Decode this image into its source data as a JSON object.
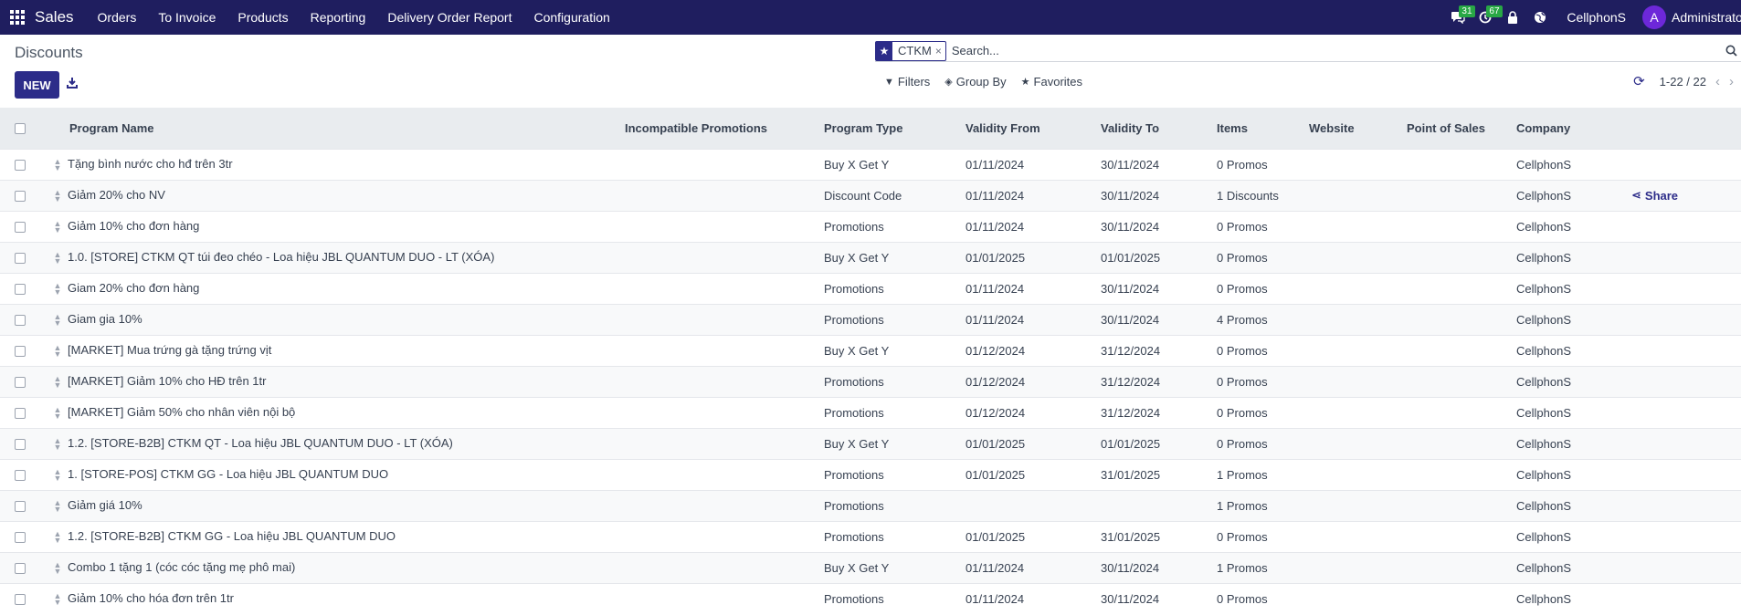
{
  "navbar": {
    "brand": "Sales",
    "menu": [
      "Orders",
      "To Invoice",
      "Products",
      "Reporting",
      "Delivery Order Report",
      "Configuration"
    ],
    "messages_badge": "31",
    "activities_badge": "67",
    "company": "CellphonS",
    "user_initial": "A",
    "user_name": "Administrator"
  },
  "control_panel": {
    "title": "Discounts",
    "new_label": "NEW",
    "search": {
      "facet_label": "CTKM",
      "facet_remove": "×",
      "placeholder": "Search..."
    },
    "filters_label": "Filters",
    "group_by_label": "Group By",
    "favorites_label": "Favorites",
    "pager_value": "1-22 / 22"
  },
  "table": {
    "columns": [
      "Program Name",
      "Incompatible Promotions",
      "Program Type",
      "Validity From",
      "Validity To",
      "Items",
      "Website",
      "Point of Sales",
      "Company"
    ],
    "share_label": "Share",
    "rows": [
      {
        "name": "Tặng bình nước cho hđ trên 3tr",
        "incompatible": "",
        "type": "Buy X Get Y",
        "from": "01/11/2024",
        "to": "30/11/2024",
        "items": "0 Promos",
        "website": "",
        "pos": "",
        "company": "CellphonS",
        "share": false
      },
      {
        "name": "Giảm 20% cho NV",
        "incompatible": "",
        "type": "Discount Code",
        "from": "01/11/2024",
        "to": "30/11/2024",
        "items": "1 Discounts",
        "website": "",
        "pos": "",
        "company": "CellphonS",
        "share": true
      },
      {
        "name": "Giảm 10% cho đơn hàng",
        "incompatible": "",
        "type": "Promotions",
        "from": "01/11/2024",
        "to": "30/11/2024",
        "items": "0 Promos",
        "website": "",
        "pos": "",
        "company": "CellphonS",
        "share": false
      },
      {
        "name": "1.0. [STORE] CTKM QT túi đeo chéo - Loa hiệu JBL QUANTUM DUO - LT (XÓA)",
        "incompatible": "",
        "type": "Buy X Get Y",
        "from": "01/01/2025",
        "to": "01/01/2025",
        "items": "0 Promos",
        "website": "",
        "pos": "",
        "company": "CellphonS",
        "share": false
      },
      {
        "name": "Giam 20% cho đơn hàng",
        "incompatible": "",
        "type": "Promotions",
        "from": "01/11/2024",
        "to": "30/11/2024",
        "items": "0 Promos",
        "website": "",
        "pos": "",
        "company": "CellphonS",
        "share": false
      },
      {
        "name": "Giam gia 10%",
        "incompatible": "",
        "type": "Promotions",
        "from": "01/11/2024",
        "to": "30/11/2024",
        "items": "4 Promos",
        "website": "",
        "pos": "",
        "company": "CellphonS",
        "share": false
      },
      {
        "name": "[MARKET] Mua trứng gà tặng trứng vịt",
        "incompatible": "",
        "type": "Buy X Get Y",
        "from": "01/12/2024",
        "to": "31/12/2024",
        "items": "0 Promos",
        "website": "",
        "pos": "",
        "company": "CellphonS",
        "share": false
      },
      {
        "name": "[MARKET] Giảm 10% cho HĐ trên 1tr",
        "incompatible": "",
        "type": "Promotions",
        "from": "01/12/2024",
        "to": "31/12/2024",
        "items": "0 Promos",
        "website": "",
        "pos": "",
        "company": "CellphonS",
        "share": false
      },
      {
        "name": "[MARKET] Giảm 50% cho nhân viên nội bộ",
        "incompatible": "",
        "type": "Promotions",
        "from": "01/12/2024",
        "to": "31/12/2024",
        "items": "0 Promos",
        "website": "",
        "pos": "",
        "company": "CellphonS",
        "share": false
      },
      {
        "name": "1.2. [STORE-B2B] CTKM QT - Loa hiệu JBL QUANTUM DUO - LT (XÓA)",
        "incompatible": "",
        "type": "Buy X Get Y",
        "from": "01/01/2025",
        "to": "01/01/2025",
        "items": "0 Promos",
        "website": "",
        "pos": "",
        "company": "CellphonS",
        "share": false
      },
      {
        "name": "1. [STORE-POS] CTKM GG - Loa hiệu JBL QUANTUM DUO",
        "incompatible": "",
        "type": "Promotions",
        "from": "01/01/2025",
        "to": "31/01/2025",
        "items": "1 Promos",
        "website": "",
        "pos": "",
        "company": "CellphonS",
        "share": false
      },
      {
        "name": "Giảm giá 10%",
        "incompatible": "",
        "type": "Promotions",
        "from": "",
        "to": "",
        "items": "1 Promos",
        "website": "",
        "pos": "",
        "company": "CellphonS",
        "share": false
      },
      {
        "name": "1.2. [STORE-B2B] CTKM GG - Loa hiệu JBL QUANTUM DUO",
        "incompatible": "",
        "type": "Promotions",
        "from": "01/01/2025",
        "to": "31/01/2025",
        "items": "0 Promos",
        "website": "",
        "pos": "",
        "company": "CellphonS",
        "share": false
      },
      {
        "name": "Combo 1 tặng 1 (cóc cóc tặng mẹ phô mai)",
        "incompatible": "",
        "type": "Buy X Get Y",
        "from": "01/11/2024",
        "to": "30/11/2024",
        "items": "1 Promos",
        "website": "",
        "pos": "",
        "company": "CellphonS",
        "share": false
      },
      {
        "name": "Giảm 10% cho hóa đơn trên 1tr",
        "incompatible": "",
        "type": "Promotions",
        "from": "01/11/2024",
        "to": "30/11/2024",
        "items": "0 Promos",
        "website": "",
        "pos": "",
        "company": "CellphonS",
        "share": false
      }
    ]
  }
}
